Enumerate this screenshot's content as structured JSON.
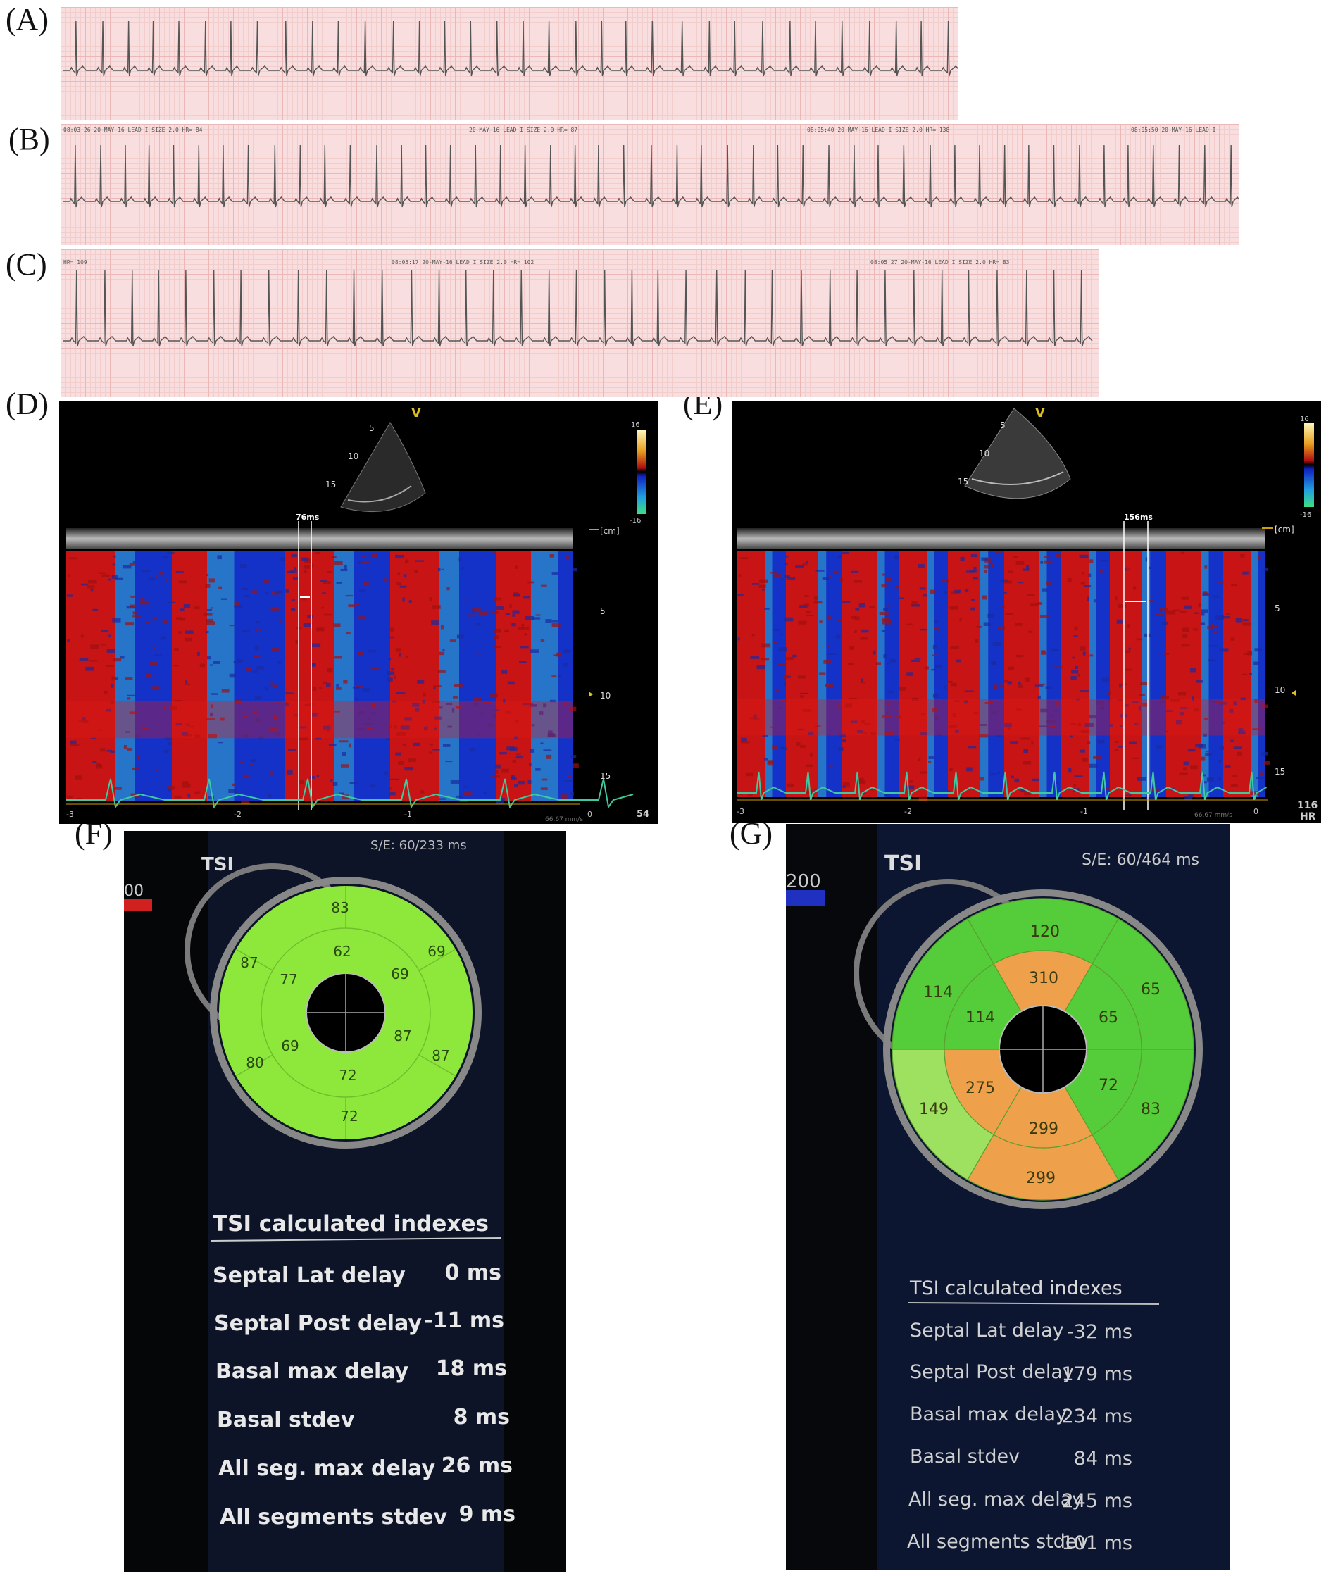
{
  "panels": {
    "A": {
      "label": "(A)"
    },
    "B": {
      "label": "(B)"
    },
    "C": {
      "label": "(C)"
    },
    "D": {
      "label": "(D)"
    },
    "E": {
      "label": "(E)"
    },
    "F": {
      "label": "(F)"
    },
    "G": {
      "label": "(G)"
    }
  },
  "ecg_b": {
    "header1": "08:03:26  20-MAY-16  LEAD I SIZE 2.0  HR= 84",
    "header2": "20-MAY-16  LEAD I SIZE 2.0  HR= 87",
    "header3": "08:05:40  20-MAY-16  LEAD I SIZE 2.0  HR= 138",
    "header4": "08:05:50  20-MAY-16  LEAD I"
  },
  "ecg_c": {
    "header1": "HR= 109",
    "header2": "08:05:17  20-MAY-16  LEAD I SIZE 2.0  HR= 102",
    "header3": "08:05:27  20-MAY-16  LEAD I SIZE 2.0  HR= 83"
  },
  "echo_d": {
    "measurement": "76ms",
    "unit": "[cm]",
    "depth_ticks": [
      "5",
      "10",
      "15"
    ],
    "time_ticks": [
      "-3",
      "-2",
      "-1",
      "0"
    ],
    "scale_top": "16",
    "scale_bottom": "-16",
    "hr_value": "54",
    "sweep": "66.67 mm/s",
    "marker": "V",
    "fan_ticks": [
      "5",
      "10",
      "15"
    ]
  },
  "echo_e": {
    "measurement": "156ms",
    "unit": "[cm]",
    "depth_ticks": [
      "5",
      "10",
      "15"
    ],
    "time_ticks": [
      "-3",
      "-2",
      "-1",
      "0"
    ],
    "scale_top": "16",
    "scale_bottom": "-16",
    "hr_value": "116",
    "hr_label": "HR",
    "sweep": "66.67 mm/s",
    "marker": "V",
    "fan_ticks": [
      "5",
      "10",
      "15"
    ]
  },
  "tsi_f": {
    "title": "TSI",
    "se": "S/E: 60/233 ms",
    "scale_partial": "00",
    "outer": {
      "top": "83",
      "upper_left": "87",
      "upper_right": "69",
      "lower_left": "80",
      "lower_right": "87",
      "bottom": "72"
    },
    "inner": {
      "top": "62",
      "upper_left": "77",
      "upper_right": "69",
      "lower_left": "69",
      "lower_right": "87",
      "bottom": "72"
    },
    "indexes_title": "TSI calculated indexes",
    "indexes": [
      {
        "label": "Septal Lat delay",
        "value": "0 ms"
      },
      {
        "label": "Septal Post delay",
        "value": "-11 ms"
      },
      {
        "label": "Basal max delay",
        "value": "18 ms"
      },
      {
        "label": "Basal stdev",
        "value": "8 ms"
      },
      {
        "label": "All seg. max delay",
        "value": "26 ms"
      },
      {
        "label": "All segments stdev",
        "value": "9 ms"
      }
    ]
  },
  "tsi_g": {
    "title": "TSI",
    "se": "S/E: 60/464 ms",
    "scale_partial": "200",
    "outer": {
      "top": "120",
      "upper_left": "114",
      "upper_right": "65",
      "lower_left": "149",
      "lower_right": "83",
      "bottom": "299"
    },
    "inner": {
      "top": "310",
      "upper_left": "114",
      "upper_right": "65",
      "lower_left": "275",
      "lower_right": "72",
      "bottom": "299"
    },
    "indexes_title": "TSI calculated indexes",
    "indexes": [
      {
        "label": "Septal Lat delay",
        "value": "-32 ms"
      },
      {
        "label": "Septal Post delay",
        "value": "179 ms"
      },
      {
        "label": "Basal max delay",
        "value": "234 ms"
      },
      {
        "label": "Basal stdev",
        "value": "84 ms"
      },
      {
        "label": "All seg. max delay",
        "value": "245 ms"
      },
      {
        "label": "All segments stdev",
        "value": "101 ms"
      }
    ]
  },
  "colors": {
    "ecg_paper": "#f8dede",
    "ecg_trace": "#555555",
    "doppler_red": "#c81414",
    "doppler_blue": "#1432c8",
    "doppler_cyan": "#3cc8c8",
    "tsi_green": "#8ee83c",
    "tsi_green_dark": "#55cc3a",
    "tsi_orange": "#eea04a"
  }
}
